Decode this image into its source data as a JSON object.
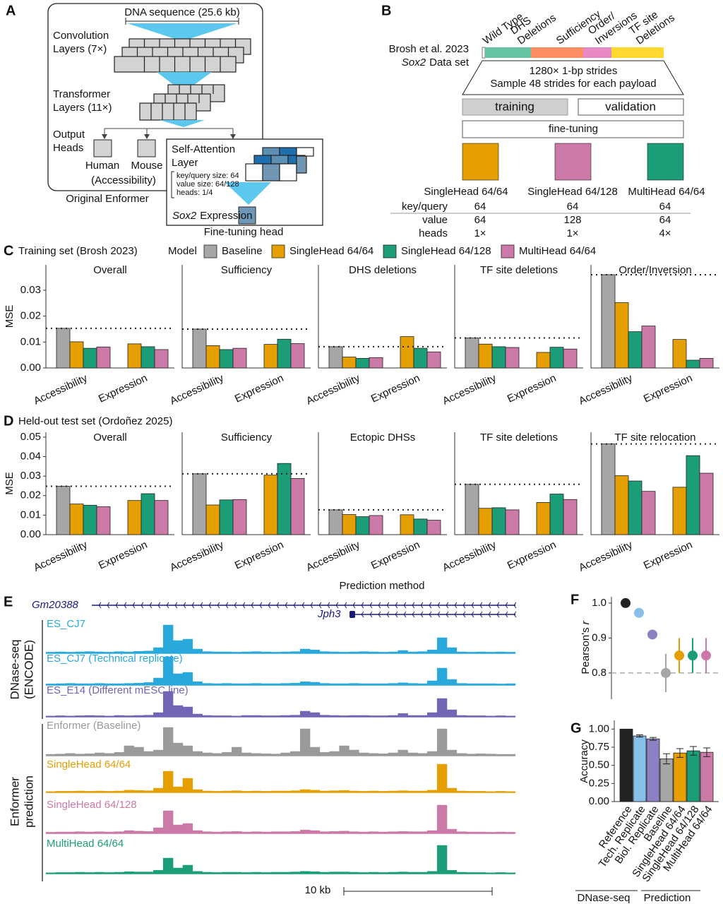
{
  "panel_labels": {
    "a": "A",
    "b": "B",
    "c": "C",
    "d": "D",
    "e": "E",
    "f": "F",
    "g": "G"
  },
  "panel_a": {
    "input": "DNA sequence (25.6 kb)",
    "conv": [
      "Convolution",
      "Layers (7×)"
    ],
    "transformer": [
      "Transformer",
      "Layers (11×)"
    ],
    "output": [
      "Output",
      "Heads"
    ],
    "human": "Human",
    "mouse": "Mouse",
    "human_track": "(Accessibility)",
    "caption": "Original Enformer",
    "attention": [
      "Self-Attention",
      "Layer"
    ],
    "params": [
      "key/query size: 64",
      "value size: 64/128",
      "heads: 1/4"
    ],
    "gene": "Sox2",
    "expression": "Expression",
    "head_caption": "Fine-tuning head"
  },
  "panel_b": {
    "source": "Brosh et al. 2023",
    "gene": "Sox2",
    "dataset": "Data set",
    "segments": [
      {
        "label": [
          "Wild Type"
        ],
        "color": "#ffffff"
      },
      {
        "label": [
          "DHS",
          "Deletions"
        ],
        "color": "#66c2a5"
      },
      {
        "label": [
          "Sufficiency"
        ],
        "color": "#fc8d62"
      },
      {
        "label": [
          "Order/",
          "Inversions"
        ],
        "color": "#e78ac3"
      },
      {
        "label": [
          "TF site",
          "Deletions"
        ],
        "color": "#ffd92f"
      }
    ],
    "strides": [
      "1280× 1-bp strides",
      "Sample 48 strides for each payload"
    ],
    "training": "training",
    "validation": "validation",
    "fine_tuning": "fine-tuning",
    "models": [
      {
        "name": "SingleHead 64/64",
        "color": "#e69f00"
      },
      {
        "name": "SingleHead 64/128",
        "color": "#cc79a7"
      },
      {
        "name": "MultiHead 64/64",
        "color": "#1b9e77"
      }
    ],
    "table": [
      {
        "label": "key/query",
        "values": [
          64,
          64,
          64
        ]
      },
      {
        "label": "value",
        "values": [
          64,
          128,
          64
        ]
      },
      {
        "label": "heads",
        "values": [
          "1×",
          "1×",
          "4×"
        ]
      }
    ]
  },
  "panel_e": {
    "genes": [
      "Gm20388",
      "Jph3"
    ],
    "groups": [
      [
        "DNase-seq",
        "(ENCODE)"
      ],
      [
        "Enformer",
        "prediction"
      ]
    ],
    "scale": "10 kb",
    "tracks": [
      {
        "label": "ES_CJ7",
        "color": "#29a8dc",
        "values": [
          0.04,
          0.05,
          0.04,
          0.05,
          0.06,
          0.05,
          0.04,
          0.06,
          0.05,
          0.07,
          0.08,
          0.2,
          1.0,
          0.45,
          0.5,
          0.15,
          0.06,
          0.05,
          0.05,
          0.04,
          0.05,
          0.06,
          0.05,
          0.04,
          0.05,
          0.06,
          0.15,
          0.12,
          0.06,
          0.05,
          0.04,
          0.05,
          0.06,
          0.05,
          0.04,
          0.05,
          0.1,
          0.05,
          0.06,
          0.12,
          0.55,
          0.2,
          0.05,
          0.04,
          0.05,
          0.04,
          0.05,
          0.04
        ]
      },
      {
        "label": "ES_CJ7 (Technical replicate)",
        "color": "#29a8dc",
        "values": [
          0.04,
          0.05,
          0.06,
          0.05,
          0.05,
          0.06,
          0.05,
          0.05,
          0.06,
          0.07,
          0.09,
          0.25,
          1.0,
          0.4,
          0.45,
          0.12,
          0.06,
          0.05,
          0.06,
          0.05,
          0.05,
          0.06,
          0.05,
          0.05,
          0.06,
          0.07,
          0.12,
          0.1,
          0.06,
          0.05,
          0.05,
          0.06,
          0.05,
          0.05,
          0.05,
          0.06,
          0.08,
          0.06,
          0.05,
          0.15,
          0.6,
          0.2,
          0.06,
          0.05,
          0.05,
          0.05,
          0.04,
          0.05
        ]
      },
      {
        "label": "ES_E14 (Different mESC line)",
        "color": "#7165b5",
        "values": [
          0.03,
          0.04,
          0.03,
          0.04,
          0.05,
          0.04,
          0.03,
          0.05,
          0.04,
          0.05,
          0.06,
          0.15,
          0.9,
          0.4,
          0.35,
          0.1,
          0.05,
          0.04,
          0.04,
          0.03,
          0.05,
          0.05,
          0.04,
          0.04,
          0.05,
          0.06,
          0.2,
          0.15,
          0.06,
          0.05,
          0.04,
          0.05,
          0.05,
          0.04,
          0.04,
          0.05,
          0.12,
          0.05,
          0.05,
          0.15,
          0.65,
          0.25,
          0.05,
          0.04,
          0.04,
          0.03,
          0.04,
          0.03
        ]
      },
      {
        "label": "Enformer (Baseline)",
        "color": "#9a9a9a",
        "values": [
          0.05,
          0.06,
          0.08,
          0.06,
          0.07,
          0.1,
          0.08,
          0.12,
          0.35,
          0.3,
          0.15,
          0.2,
          1.0,
          0.45,
          0.35,
          0.15,
          0.1,
          0.08,
          0.12,
          0.3,
          0.1,
          0.08,
          0.07,
          0.06,
          0.1,
          0.15,
          0.95,
          0.3,
          0.12,
          0.15,
          0.35,
          0.2,
          0.1,
          0.08,
          0.07,
          0.1,
          0.2,
          0.1,
          0.08,
          0.15,
          0.95,
          0.2,
          0.08,
          0.06,
          0.07,
          0.06,
          0.05,
          0.05
        ]
      },
      {
        "label": "SingleHead 64/64",
        "color": "#e69f00",
        "values": [
          0.03,
          0.04,
          0.04,
          0.05,
          0.04,
          0.05,
          0.04,
          0.05,
          0.08,
          0.07,
          0.06,
          0.15,
          0.75,
          0.2,
          0.5,
          0.1,
          0.05,
          0.04,
          0.05,
          0.06,
          0.04,
          0.05,
          0.04,
          0.05,
          0.05,
          0.06,
          0.1,
          0.08,
          0.05,
          0.06,
          0.07,
          0.05,
          0.04,
          0.05,
          0.04,
          0.05,
          0.06,
          0.05,
          0.05,
          0.08,
          1.0,
          0.15,
          0.05,
          0.04,
          0.04,
          0.03,
          0.04,
          0.03
        ]
      },
      {
        "label": "SingleHead 64/128",
        "color": "#cc79a7",
        "values": [
          0.04,
          0.05,
          0.05,
          0.06,
          0.05,
          0.06,
          0.05,
          0.06,
          0.1,
          0.08,
          0.07,
          0.2,
          0.8,
          0.3,
          0.35,
          0.1,
          0.06,
          0.05,
          0.06,
          0.07,
          0.05,
          0.06,
          0.05,
          0.06,
          0.06,
          0.07,
          0.12,
          0.1,
          0.06,
          0.07,
          0.08,
          0.06,
          0.05,
          0.06,
          0.05,
          0.06,
          0.07,
          0.06,
          0.06,
          0.1,
          1.0,
          0.15,
          0.06,
          0.05,
          0.05,
          0.04,
          0.05,
          0.04
        ]
      },
      {
        "label": "MultiHead 64/64",
        "color": "#1b9e77",
        "values": [
          0.03,
          0.04,
          0.04,
          0.05,
          0.04,
          0.05,
          0.04,
          0.05,
          0.07,
          0.06,
          0.06,
          0.12,
          0.55,
          0.2,
          0.3,
          0.08,
          0.05,
          0.04,
          0.05,
          0.05,
          0.04,
          0.05,
          0.04,
          0.05,
          0.05,
          0.06,
          0.08,
          0.07,
          0.05,
          0.06,
          0.06,
          0.05,
          0.04,
          0.05,
          0.04,
          0.05,
          0.06,
          0.05,
          0.05,
          0.08,
          1.0,
          0.12,
          0.05,
          0.04,
          0.04,
          0.03,
          0.04,
          0.03
        ]
      }
    ]
  },
  "chart_data": [
    {
      "type": "bar",
      "title": "Training set (Brosh 2023)",
      "legend_title": "Model",
      "y_label": "MSE",
      "categories": [
        "Accessibility",
        "Expression"
      ],
      "series": [
        {
          "name": "Baseline",
          "color": "#a6a6a6"
        },
        {
          "name": "SingleHead 64/64",
          "color": "#e69f00"
        },
        {
          "name": "SingleHead 64/128",
          "color": "#1b9e77"
        },
        {
          "name": "MultiHead 64/64",
          "color": "#cc79a7"
        }
      ],
      "ylim": [
        0,
        0.0398
      ],
      "yticks": [
        {
          "value": 0,
          "label": "0.00"
        },
        0.01,
        0.02,
        0.03
      ],
      "facets": [
        {
          "title": "Overall",
          "series": [
            {
              "values": [
                0.0153,
                null
              ]
            },
            {
              "values": [
                0.0101,
                0.0093
              ]
            },
            {
              "values": [
                0.0076,
                0.0082
              ]
            },
            {
              "values": [
                0.0081,
                0.0071
              ]
            }
          ]
        },
        {
          "title": "Sufficiency",
          "series": [
            {
              "values": [
                0.015,
                null
              ]
            },
            {
              "values": [
                0.0086,
                0.0091
              ]
            },
            {
              "values": [
                0.0071,
                0.0111
              ]
            },
            {
              "values": [
                0.0076,
                0.0094
              ]
            }
          ]
        },
        {
          "title": "DHS deletions",
          "series": [
            {
              "values": [
                0.0082,
                null
              ]
            },
            {
              "values": [
                0.0042,
                0.0121
              ]
            },
            {
              "values": [
                0.0037,
                0.0076
              ]
            },
            {
              "values": [
                0.004,
                0.0062
              ]
            }
          ]
        },
        {
          "title": "TF site deletions",
          "series": [
            {
              "values": [
                0.0116,
                null
              ]
            },
            {
              "values": [
                0.0092,
                0.006
              ]
            },
            {
              "values": [
                0.0082,
                0.008
              ]
            },
            {
              "values": [
                0.0079,
                0.0073
              ]
            }
          ]
        },
        {
          "title": "Order/Inversion",
          "series": [
            {
              "values": [
                0.036,
                null
              ]
            },
            {
              "values": [
                0.0252,
                0.011
              ]
            },
            {
              "values": [
                0.014,
                0.003
              ]
            },
            {
              "values": [
                0.0162,
                0.0037
              ]
            }
          ]
        }
      ]
    },
    {
      "type": "bar",
      "title": "Held-out test set (Ordoñez 2025)",
      "y_label": "MSE",
      "x_label": "Prediction method",
      "categories": [
        "Accessibility",
        "Expression"
      ],
      "colors": [
        "#a6a6a6",
        "#e69f00",
        "#1b9e77",
        "#cc79a7"
      ],
      "ylim": [
        0,
        0.0525
      ],
      "yticks": [
        {
          "value": 0,
          "label": "0.00"
        },
        0.01,
        0.02,
        0.03,
        0.04,
        0.05
      ],
      "facets": [
        {
          "title": "Overall",
          "series": [
            {
              "values": [
                0.0248,
                null
              ]
            },
            {
              "values": [
                0.0157,
                0.0175
              ]
            },
            {
              "values": [
                0.0151,
                0.021
              ]
            },
            {
              "values": [
                0.0143,
                0.0175
              ]
            }
          ]
        },
        {
          "title": "Sufficiency",
          "series": [
            {
              "values": [
                0.0312,
                null
              ]
            },
            {
              "values": [
                0.0152,
                0.0305
              ]
            },
            {
              "values": [
                0.0178,
                0.0365
              ]
            },
            {
              "values": [
                0.018,
                0.0288
              ]
            }
          ]
        },
        {
          "title": "Ectopic DHSs",
          "series": [
            {
              "values": [
                0.0127,
                null
              ]
            },
            {
              "values": [
                0.0103,
                0.0102
              ]
            },
            {
              "values": [
                0.0092,
                0.008
              ]
            },
            {
              "values": [
                0.0098,
                0.0074
              ]
            }
          ]
        },
        {
          "title": "TF site deletions",
          "series": [
            {
              "values": [
                0.0258,
                null
              ]
            },
            {
              "values": [
                0.0135,
                0.0165
              ]
            },
            {
              "values": [
                0.0138,
                0.0208
              ]
            },
            {
              "values": [
                0.0127,
                0.018
              ]
            }
          ]
        },
        {
          "title": "TF site relocation",
          "series": [
            {
              "values": [
                0.0465,
                null
              ]
            },
            {
              "values": [
                0.0302,
                0.0243
              ]
            },
            {
              "values": [
                0.0275,
                0.0405
              ]
            },
            {
              "values": [
                0.0222,
                0.0315
              ]
            }
          ]
        }
      ]
    },
    {
      "type": "pointrange",
      "y_label": "Pearson's",
      "y_label_var": "r",
      "values": [
        1,
        0.972,
        0.91,
        0.8,
        0.85,
        0.85,
        0.85
      ],
      "errors": [
        null,
        null,
        0.012,
        0.055,
        0.05,
        0.05,
        0.05
      ],
      "colors": [
        "#222222",
        "#86bfe8",
        "#8b80c2",
        "#a6a6a6",
        "#e69f00",
        "#1b9e77",
        "#cc79a7"
      ],
      "ylim": [
        0.725,
        1.018
      ],
      "yticks": [
        0.8,
        0.9,
        {
          "value": 1,
          "label": "1.0"
        }
      ]
    },
    {
      "type": "errorbar",
      "y_label": "Accuracy",
      "categories": [
        "Reference",
        "Tech. Replicate",
        "Biol. Replicate",
        "Baseline",
        "SingleHead 64/64",
        "SingleHead 64/128",
        "MultiHead 64/64"
      ],
      "values": [
        1,
        0.905,
        0.865,
        0.59,
        0.67,
        0.7,
        0.68
      ],
      "errors": [
        null,
        0.015,
        0.02,
        0.07,
        0.06,
        0.06,
        0.06
      ],
      "colors": [
        "#222222",
        "#86bfe8",
        "#8b80c2",
        "#a6a6a6",
        "#e69f00",
        "#1b9e77",
        "#cc79a7"
      ],
      "groups": [
        "DNase-seq",
        "Prediction"
      ],
      "ylim": [
        0,
        1.12
      ],
      "yticks": [
        {
          "value": 0,
          "label": "0.00"
        },
        0.25,
        {
          "value": 0.5,
          "label": "0.50"
        },
        0.75,
        {
          "value": 1,
          "label": "1.00"
        }
      ]
    }
  ]
}
